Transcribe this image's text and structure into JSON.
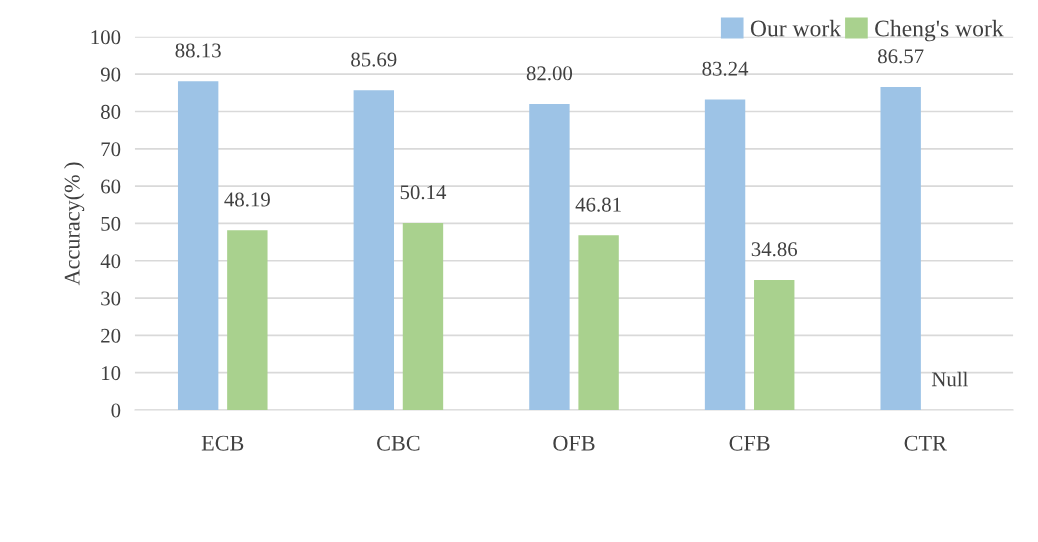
{
  "chart_data": {
    "type": "bar",
    "ylabel": "Accuracy(% )",
    "categories": [
      "ECB",
      "CBC",
      "OFB",
      "CFB",
      "CTR"
    ],
    "series": [
      {
        "name": "Our work",
        "color": "#9dc3e6",
        "values": [
          88.13,
          85.69,
          82.0,
          83.24,
          86.57
        ],
        "value_labels": [
          "88.13",
          "85.69",
          "82.00",
          "83.24",
          "86.57"
        ]
      },
      {
        "name": "Cheng's work",
        "color": "#a9d18e",
        "values": [
          48.19,
          50.14,
          46.81,
          34.86,
          null
        ],
        "value_labels": [
          "48.19",
          "50.14",
          "46.81",
          "34.86",
          "Null"
        ]
      }
    ],
    "ylim": [
      0,
      100
    ],
    "yticks": [
      0,
      10,
      20,
      30,
      40,
      50,
      60,
      70,
      80,
      90,
      100
    ],
    "grid": "y",
    "legend": "top right"
  }
}
